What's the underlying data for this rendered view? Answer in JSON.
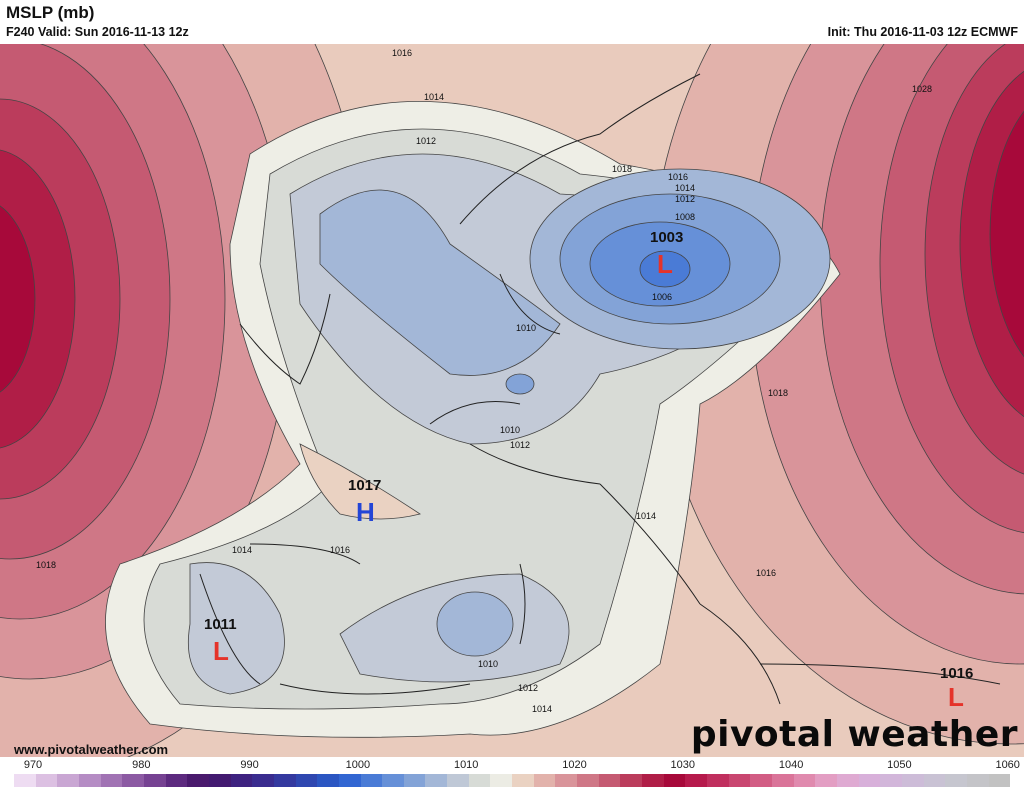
{
  "header": {
    "title": "MSLP (mb)",
    "valid": "F240 Valid: Sun 2016-11-13 12z",
    "init": "Init: Thu 2016-11-03 12z ECMWF"
  },
  "map": {
    "contour_labels": [
      "1016",
      "1014",
      "1012",
      "1028",
      "1018",
      "1016",
      "1014",
      "1012",
      "1008",
      "1006",
      "1010",
      "1010",
      "1012",
      "1018",
      "1014",
      "1016",
      "1014",
      "1016",
      "1018",
      "1010",
      "1012",
      "1014"
    ],
    "centers": [
      {
        "type": "L",
        "value": "1003",
        "color": "#e5332a"
      },
      {
        "type": "H",
        "value": "1017",
        "color": "#2445d6"
      },
      {
        "type": "L",
        "value": "1011",
        "color": "#e5332a"
      },
      {
        "type": "L",
        "value": "1016",
        "color": "#e5332a"
      }
    ]
  },
  "footer": {
    "website": "www.pivotalweather.com",
    "brand": "pivotal weather"
  },
  "colorbar": {
    "ticks": [
      "970",
      "980",
      "990",
      "1000",
      "1010",
      "1020",
      "1030",
      "1040",
      "1050",
      "1060"
    ],
    "colors": [
      "#eedcf2",
      "#dcc0e2",
      "#c9a6d3",
      "#b58cc4",
      "#a173b4",
      "#8c5aa3",
      "#764292",
      "#5d2a7f",
      "#4a1a6d",
      "#431a70",
      "#3e2280",
      "#3a2c8f",
      "#34399f",
      "#2f47b0",
      "#2b56c2",
      "#3266d2",
      "#4a7bd6",
      "#6690d8",
      "#83a3d7",
      "#a3b7d7",
      "#bfc8d6",
      "#d7dbd6",
      "#ecece4",
      "#ead2c2",
      "#e2b2ab",
      "#d9949a",
      "#cf7786",
      "#c55a72",
      "#bb3c5c",
      "#b01e47",
      "#a7093a",
      "#b61a4c",
      "#c02f5e",
      "#c94670",
      "#d25d84",
      "#da7499",
      "#e08aae",
      "#e39ec3",
      "#dfaad2",
      "#d8b0da",
      "#d2b6da",
      "#cdbcd8",
      "#c9c2d4",
      "#c6c6cf",
      "#c4c4c8",
      "#c2c2c2"
    ]
  }
}
